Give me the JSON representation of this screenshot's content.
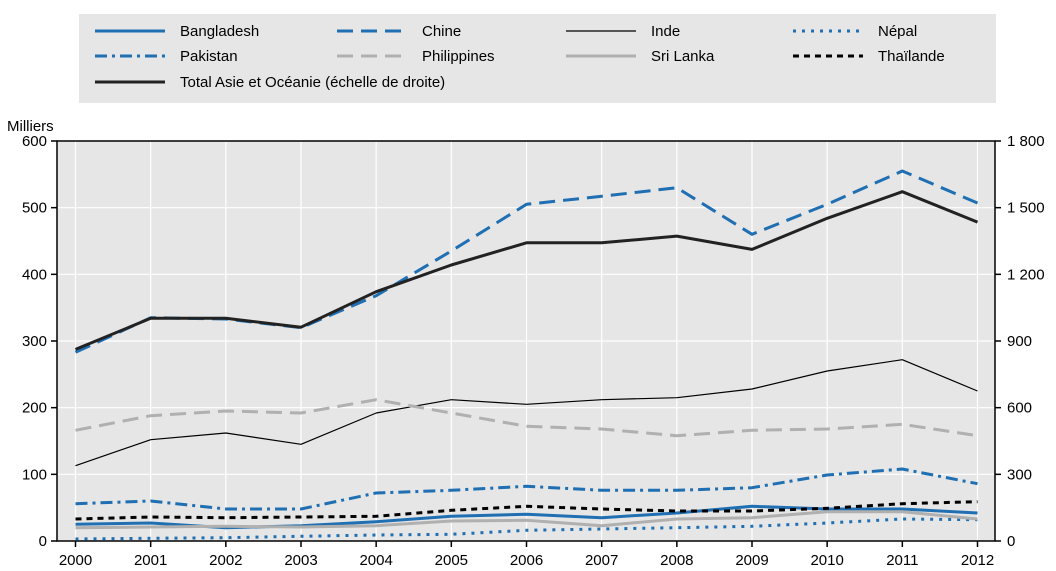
{
  "chart_data": {
    "type": "line",
    "y_unit_label": "Milliers",
    "x": [
      2000,
      2001,
      2002,
      2003,
      2004,
      2005,
      2006,
      2007,
      2008,
      2009,
      2010,
      2011,
      2012
    ],
    "x_ticks": [
      "2000",
      "2001",
      "2002",
      "2003",
      "2004",
      "2005",
      "2006",
      "2007",
      "2008",
      "2009",
      "2010",
      "2011",
      "2012"
    ],
    "ylim_left": [
      0,
      600
    ],
    "yticks_left": [
      "0",
      "100",
      "200",
      "300",
      "400",
      "500",
      "600"
    ],
    "ylim_right": [
      0,
      1800
    ],
    "yticks_right": [
      "0",
      "300",
      "600",
      "900",
      "1 200",
      "1 500",
      "1 800"
    ],
    "grid": true,
    "legend_position": "top",
    "series": [
      {
        "name": "Bangladesh",
        "axis": "left",
        "color": "#1f6fb2",
        "style": "solid",
        "width": 3,
        "values": [
          25,
          27,
          20,
          23,
          29,
          37,
          40,
          35,
          42,
          52,
          48,
          48,
          42
        ]
      },
      {
        "name": "Chine",
        "axis": "left",
        "color": "#1f6fb2",
        "style": "dashed",
        "width": 3,
        "values": [
          283,
          335,
          333,
          320,
          368,
          435,
          505,
          517,
          530,
          460,
          505,
          555,
          507
        ]
      },
      {
        "name": "Inde",
        "axis": "left",
        "color": "#000000",
        "style": "thin",
        "width": 1,
        "values": [
          113,
          152,
          162,
          145,
          192,
          212,
          205,
          212,
          215,
          228,
          255,
          272,
          225
        ]
      },
      {
        "name": "Népal",
        "axis": "left",
        "color": "#1f6fb2",
        "style": "dotted",
        "width": 3,
        "values": [
          3,
          4,
          5,
          7,
          9,
          10,
          16,
          18,
          20,
          22,
          27,
          33,
          32
        ]
      },
      {
        "name": "Pakistan",
        "axis": "left",
        "color": "#1f6fb2",
        "style": "dashdot",
        "width": 3,
        "values": [
          56,
          60,
          48,
          48,
          72,
          76,
          82,
          76,
          76,
          80,
          99,
          108,
          86
        ]
      },
      {
        "name": "Philippines",
        "axis": "left",
        "color": "#b0b0b0",
        "style": "dashed",
        "width": 3,
        "values": [
          166,
          188,
          195,
          192,
          212,
          192,
          172,
          168,
          158,
          166,
          168,
          175,
          158
        ]
      },
      {
        "name": "Sri Lanka",
        "axis": "left",
        "color": "#b0b0b0",
        "style": "solid",
        "width": 3,
        "values": [
          20,
          21,
          22,
          21,
          23,
          30,
          31,
          23,
          33,
          35,
          44,
          44,
          33
        ]
      },
      {
        "name": "Thaïlande",
        "axis": "left",
        "color": "#000000",
        "style": "dotted-black",
        "width": 3,
        "values": [
          33,
          36,
          35,
          36,
          37,
          46,
          52,
          48,
          45,
          45,
          49,
          56,
          59
        ]
      },
      {
        "name": "Total Asie et Océanie (échelle de droite)",
        "axis": "right",
        "color": "#222222",
        "style": "solid",
        "width": 3,
        "values": [
          862,
          1002,
          1002,
          962,
          1122,
          1242,
          1342,
          1342,
          1372,
          1312,
          1452,
          1572,
          1435
        ]
      }
    ]
  },
  "colors": {
    "legend_background": "#e6e6e6",
    "grid": "#ffffff",
    "plot_background": "#e6e6e6"
  }
}
